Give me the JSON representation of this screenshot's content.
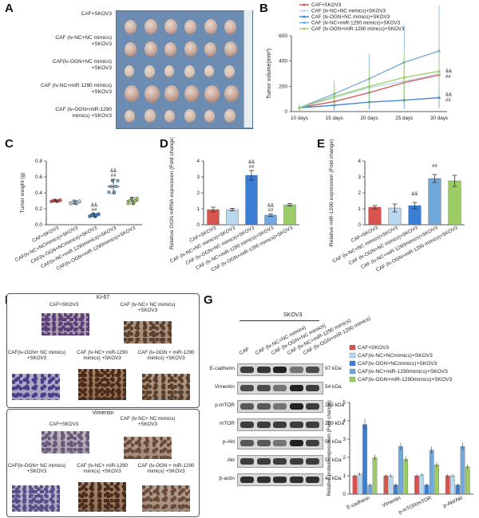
{
  "panels": {
    "a": "A",
    "b": "B",
    "c": "C",
    "d": "D",
    "e": "E",
    "f": "F",
    "g": "G"
  },
  "groups": [
    "CAF+SKOV3",
    "CAF (lv-NC+NC mimics)+SKOV3",
    "CAF(lv-OGN+NC mimics)+SKOV3",
    "CAF (lv-NC+miR-1290 mimics)+SKOV3",
    "CAF (lv-OGN+miR-1290 mimics)+SKOV3"
  ],
  "panel_a": {
    "labels": [
      "CAF+SKOV3",
      "CAF (lv-NC+NC mimics) +SKOV3",
      "CAF(lv-OGN+NC mimics) +SKOV3",
      "CAF (lv-NC+miR 1290 mimics) +SKOV3",
      "CAF (lv-OGN+miR-1290 mimics) +SKOV3"
    ]
  },
  "colors": {
    "g1": "#d9534f",
    "g2": "#b8d8f0",
    "g3": "#3a7fd4",
    "g4": "#6fa8dc",
    "g5": "#9ccc65"
  },
  "chart_data": [
    {
      "id": "B",
      "type": "line",
      "ylabel": "Tumor volume(mm³)",
      "x": [
        "10 days",
        "15 days",
        "20 days",
        "25 days",
        "30 days"
      ],
      "yticks": [
        0,
        200,
        400,
        600
      ],
      "ylim": [
        0,
        600
      ],
      "legend": [
        "CAF+SKOV3",
        "CAF (lv-NC+NC mimics)+SKOV3",
        "CAF (lv-OGN+NC mimics)+SKOV3",
        "CAF (lv-NC+miR-1290 mimics)+SKOV3",
        "CAF (lv-OGN+miR-1290 mimics)+SKOV3"
      ],
      "series": [
        {
          "values": [
            30,
            80,
            150,
            230,
            290
          ],
          "color": "#d9534f"
        },
        {
          "values": [
            30,
            110,
            190,
            240,
            300
          ],
          "color": "#b8d8f0"
        },
        {
          "values": [
            30,
            50,
            75,
            90,
            110
          ],
          "color": "#3a7fd4"
        },
        {
          "values": [
            30,
            140,
            260,
            390,
            480
          ],
          "color": "#6fa8dc"
        },
        {
          "values": [
            30,
            120,
            200,
            270,
            320
          ],
          "color": "#9ccc65"
        }
      ],
      "annotations": [
        "&&",
        "##",
        "&&",
        "##"
      ]
    },
    {
      "id": "C",
      "type": "bar",
      "ylabel": "Tumor weight (g)",
      "yticks": [
        "0.0",
        "0.2",
        "0.4",
        "0.6",
        "0.8"
      ],
      "ylim": [
        0,
        0.8
      ],
      "categories": [
        "CAF+SKOV3",
        "CAF(lv-NC+NCmimics)+SKOV3",
        "CAF(lv-OGN+NCmimics)+SKOV3",
        "CAF(lv-NC+miR-1290mimics)+SKOV3",
        "CAF(lv-OGN+miR-1290mimics)+SKOV3"
      ],
      "values": [
        0.3,
        0.28,
        0.12,
        0.48,
        0.3
      ],
      "errors": [
        0.01,
        0.02,
        0.02,
        0.09,
        0.04
      ],
      "annotations": [
        "",
        "",
        "&&\n##",
        "&&\n##",
        ""
      ]
    },
    {
      "id": "D",
      "type": "bar",
      "ylabel": "Relative OGN mRNA expression (Fold change)",
      "yticks": [
        "0",
        "1",
        "2",
        "3",
        "4"
      ],
      "ylim": [
        0,
        4
      ],
      "categories": [
        "CAF+SKOV3",
        "CAF (lv-NC+NC mimics)+SKOV3",
        "CAF (lv-OGN+NC mimics)+SKOV3",
        "CAF (lv-NC+miR-1290 mimics)+SKOV3",
        "CAF (lv-OGN+miR-1290 mimics)+SKOV3"
      ],
      "values": [
        0.95,
        0.95,
        3.1,
        0.6,
        1.25
      ],
      "errors": [
        0.15,
        0.08,
        0.3,
        0.08,
        0.07
      ],
      "annotations": [
        "",
        "",
        "&&\n##",
        "&&\n##",
        ""
      ]
    },
    {
      "id": "E",
      "type": "bar",
      "ylabel": "Relative miR-1290 expression (Fold change)",
      "yticks": [
        "0",
        "1",
        "2",
        "3",
        "4"
      ],
      "ylim": [
        0,
        4
      ],
      "categories": [
        "CAF+SKOV3",
        "CAF (lv-NC+NC mimics)+SKOV3",
        "CAF (lv-OGN+NC mimics)+SKOV3",
        "CAF (lv-NC+miR-1290mimics)+SKOV3",
        "CAF (lv-OGN+miR-1290 mimics)+SKOV3"
      ],
      "values": [
        1.1,
        1.05,
        1.2,
        2.9,
        2.75
      ],
      "errors": [
        0.1,
        0.25,
        0.2,
        0.25,
        0.35
      ],
      "annotations": [
        "",
        "",
        "&&",
        "##",
        ""
      ]
    },
    {
      "id": "G-quant",
      "type": "bar",
      "ylabel": "Relative protein expression (Fold change)",
      "yticks": [
        "0",
        "1",
        "2",
        "3",
        "4",
        "5"
      ],
      "ylim": [
        0,
        5
      ],
      "categories": [
        "E-cadherin",
        "Vimentin",
        "p-mTOR/mTOR",
        "p-Akt/Akt"
      ],
      "legend": [
        "CAF+SKOV3",
        "CAF(lv-NC+NCmimics)+SKOV3",
        "CAF(lv-OGN+NCmimics)+SKOV3",
        "CAF(lv-NC+miR-1290mimics)+SKOV3",
        "CAF(lv-OGN+miR-1290mimics)+SKOV3"
      ],
      "series": [
        {
          "values": [
            1.0,
            1.0,
            1.0,
            1.0
          ],
          "color": "#d9534f"
        },
        {
          "values": [
            1.1,
            1.0,
            1.05,
            1.0
          ],
          "color": "#b8d8f0"
        },
        {
          "values": [
            3.8,
            0.5,
            0.5,
            0.5
          ],
          "color": "#3a7fd4"
        },
        {
          "values": [
            0.5,
            2.6,
            2.4,
            2.6
          ],
          "color": "#6fa8dc"
        },
        {
          "values": [
            2.0,
            1.9,
            1.6,
            1.5
          ],
          "color": "#9ccc65"
        }
      ]
    }
  ],
  "panel_f": {
    "ki67_title": "Ki-67",
    "vim_title": "Vimentin",
    "labels": [
      "CAF+SKOV3",
      "CAF (lv-NC+ NC mimics) +SKOV3",
      "CAF(lv-OGN+ NC mimics) +SKOV3",
      "CAF (lv-NC+ miR-1290 mimics) +SKOV3",
      "CAF (lv-OGN + miR-1290 mimics) +SKOV3"
    ]
  },
  "panel_g": {
    "header": "SKOV3",
    "col_labels": [
      "CAF",
      "CAF (lv-NC+NC mimics)",
      "CAF (lv-OGN+NC mimics)",
      "CAF (lv-NC+miR-1290 mimics)",
      "CAF (lv-OGN+miR-1290 mimics)"
    ],
    "rows": [
      {
        "name": "E-cadherin",
        "kda": "97 kDa",
        "intensity": [
          0.8,
          0.85,
          1.0,
          0.4,
          0.7
        ]
      },
      {
        "name": "Vimentin",
        "kda": "54 kDa",
        "intensity": [
          0.7,
          0.7,
          0.4,
          1.0,
          0.8
        ]
      },
      {
        "name": "p-mTOR",
        "kda": "289 kDa",
        "intensity": [
          0.6,
          0.6,
          0.4,
          1.0,
          0.8
        ]
      },
      {
        "name": "mTOR",
        "kda": "289 kDa",
        "intensity": [
          0.8,
          0.8,
          0.8,
          0.8,
          0.8
        ]
      },
      {
        "name": "p-Akt",
        "kda": "56 kDa",
        "intensity": [
          0.6,
          0.6,
          0.4,
          1.0,
          0.8
        ]
      },
      {
        "name": "Akt",
        "kda": "56 kDa",
        "intensity": [
          0.8,
          0.8,
          0.8,
          0.8,
          0.8
        ]
      },
      {
        "name": "β-actin",
        "kda": "42 kDa",
        "intensity": [
          0.9,
          0.9,
          0.9,
          0.9,
          0.9
        ]
      }
    ]
  }
}
